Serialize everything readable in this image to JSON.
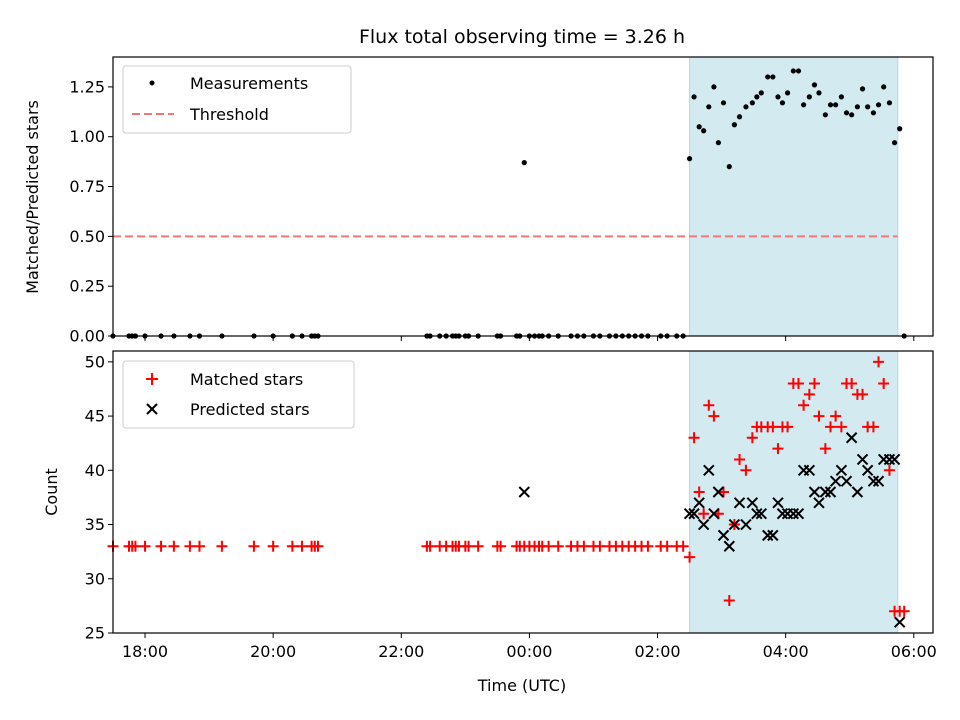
{
  "chart_data": [
    {
      "type": "scatter",
      "title": "Flux total observing time = 3.26 h",
      "ylabel": "Matched/Predicted stars",
      "xlabel": "",
      "xlim": [
        -6.5,
        6.3
      ],
      "ylim": [
        0,
        1.4
      ],
      "x_unit": "hours relative to 00:00 UTC",
      "yticks": [
        0,
        0.25,
        0.5,
        0.75,
        1.0,
        1.25
      ],
      "ytick_labels": [
        "0.00",
        "0.25",
        "0.50",
        "0.75",
        "1.00",
        "1.25"
      ],
      "highlight_span": [
        2.5,
        5.75
      ],
      "highlight_color": "#d3eaf1",
      "series": [
        {
          "name": "Measurements",
          "marker": "dot",
          "color": "#000000",
          "x": [
            -6.5,
            -6.25,
            -6.2,
            -6.15,
            -6.0,
            -5.75,
            -5.55,
            -5.3,
            -5.15,
            -4.8,
            -4.3,
            -4.0,
            -3.7,
            -3.55,
            -3.4,
            -3.35,
            -3.3,
            -1.6,
            -1.55,
            -1.4,
            -1.3,
            -1.2,
            -1.15,
            -1.1,
            -1.0,
            -0.95,
            -0.8,
            -0.5,
            -0.45,
            -0.2,
            -0.15,
            -0.08,
            0.0,
            0.08,
            0.15,
            0.2,
            0.3,
            0.45,
            0.65,
            0.75,
            0.85,
            1.0,
            1.1,
            1.25,
            1.35,
            1.45,
            1.55,
            1.65,
            1.75,
            1.85,
            2.05,
            2.15,
            2.3,
            2.4,
            2.5,
            2.57,
            2.65,
            2.72,
            2.8,
            2.88,
            2.95,
            3.03,
            3.12,
            3.2,
            3.28,
            3.38,
            3.48,
            3.55,
            3.62,
            3.72,
            3.8,
            3.88,
            3.95,
            4.03,
            4.12,
            4.2,
            4.28,
            4.37,
            4.45,
            4.52,
            4.62,
            4.7,
            4.78,
            4.87,
            4.95,
            5.03,
            5.12,
            5.2,
            5.28,
            5.37,
            5.45,
            5.53,
            5.62,
            5.7,
            5.78,
            5.85
          ],
          "y": [
            0,
            0,
            0,
            0,
            0,
            0,
            0,
            0,
            0,
            0,
            0,
            0,
            0,
            0,
            0,
            0,
            0,
            0,
            0,
            0,
            0,
            0,
            0,
            0,
            0,
            0,
            0,
            0,
            0,
            0,
            0,
            0.87,
            0,
            0,
            0,
            0,
            0,
            0,
            0,
            0,
            0,
            0,
            0,
            0,
            0,
            0,
            0,
            0,
            0,
            0,
            0,
            0,
            0,
            0,
            0.89,
            1.2,
            1.05,
            1.03,
            1.15,
            1.25,
            0.97,
            1.17,
            0.85,
            1.06,
            1.1,
            1.15,
            1.17,
            1.2,
            1.22,
            1.3,
            1.3,
            1.2,
            1.17,
            1.22,
            1.33,
            1.33,
            1.16,
            1.2,
            1.26,
            1.22,
            1.11,
            1.16,
            1.16,
            1.2,
            1.12,
            1.11,
            1.15,
            1.24,
            1.15,
            1.12,
            1.16,
            1.25,
            1.17,
            0.97,
            1.04,
            0
          ]
        },
        {
          "name": "Threshold",
          "marker": "dashed-line",
          "color": "#f07878",
          "x": [
            -6.5,
            5.75
          ],
          "y": [
            0.5,
            0.5
          ]
        }
      ],
      "legend": {
        "position": "top-left",
        "entries": [
          "Measurements",
          "Threshold"
        ]
      }
    },
    {
      "type": "scatter",
      "title": "",
      "ylabel": "Count",
      "xlabel": "Time (UTC)",
      "xlim": [
        -6.5,
        6.3
      ],
      "ylim": [
        25,
        51
      ],
      "x_unit": "hours relative to 00:00 UTC",
      "xticks": [
        -6,
        -4,
        -2,
        0,
        2,
        4,
        6
      ],
      "xtick_labels": [
        "18:00",
        "20:00",
        "22:00",
        "00:00",
        "02:00",
        "04:00",
        "06:00"
      ],
      "yticks": [
        25,
        30,
        35,
        40,
        45,
        50
      ],
      "ytick_labels": [
        "25",
        "30",
        "35",
        "40",
        "45",
        "50"
      ],
      "highlight_span": [
        2.5,
        5.75
      ],
      "highlight_color": "#d3eaf1",
      "series": [
        {
          "name": "Matched stars",
          "marker": "plus",
          "color": "#ff0000",
          "x": [
            -6.5,
            -6.25,
            -6.2,
            -6.15,
            -6.0,
            -5.75,
            -5.55,
            -5.3,
            -5.15,
            -4.8,
            -4.3,
            -4.0,
            -3.7,
            -3.55,
            -3.4,
            -3.35,
            -3.3,
            -1.6,
            -1.55,
            -1.4,
            -1.3,
            -1.2,
            -1.15,
            -1.1,
            -1.0,
            -0.95,
            -0.8,
            -0.5,
            -0.45,
            -0.2,
            -0.15,
            -0.08,
            0.0,
            0.08,
            0.15,
            0.2,
            0.3,
            0.45,
            0.65,
            0.75,
            0.85,
            1.0,
            1.1,
            1.25,
            1.35,
            1.45,
            1.55,
            1.65,
            1.75,
            1.85,
            2.05,
            2.15,
            2.3,
            2.4,
            2.5,
            2.57,
            2.65,
            2.72,
            2.8,
            2.88,
            2.95,
            3.03,
            3.12,
            3.2,
            3.28,
            3.38,
            3.48,
            3.55,
            3.62,
            3.72,
            3.8,
            3.88,
            3.95,
            4.03,
            4.12,
            4.2,
            4.28,
            4.37,
            4.45,
            4.52,
            4.62,
            4.7,
            4.78,
            4.87,
            4.95,
            5.03,
            5.12,
            5.2,
            5.28,
            5.37,
            5.45,
            5.53,
            5.62,
            5.7,
            5.78,
            5.85
          ],
          "y": [
            33,
            33,
            33,
            33,
            33,
            33,
            33,
            33,
            33,
            33,
            33,
            33,
            33,
            33,
            33,
            33,
            33,
            33,
            33,
            33,
            33,
            33,
            33,
            33,
            33,
            33,
            33,
            33,
            33,
            33,
            33,
            33,
            33,
            33,
            33,
            33,
            33,
            33,
            33,
            33,
            33,
            33,
            33,
            33,
            33,
            33,
            33,
            33,
            33,
            33,
            33,
            33,
            33,
            33,
            32,
            43,
            38,
            36,
            46,
            45,
            36,
            38,
            28,
            35,
            41,
            40,
            43,
            44,
            44,
            44,
            44,
            42,
            44,
            44,
            48,
            48,
            46,
            47,
            48,
            45,
            42,
            44,
            45,
            44,
            48,
            48,
            47,
            47,
            44,
            44,
            50,
            48,
            40,
            27,
            27,
            27
          ]
        },
        {
          "name": "Predicted stars",
          "marker": "x",
          "color": "#000000",
          "x": [
            -0.08,
            2.5,
            2.57,
            2.65,
            2.72,
            2.8,
            2.88,
            2.95,
            3.03,
            3.12,
            3.2,
            3.28,
            3.38,
            3.48,
            3.55,
            3.62,
            3.72,
            3.8,
            3.88,
            3.95,
            4.03,
            4.12,
            4.2,
            4.28,
            4.37,
            4.45,
            4.52,
            4.62,
            4.7,
            4.78,
            4.87,
            4.95,
            5.03,
            5.12,
            5.2,
            5.28,
            5.37,
            5.45,
            5.53,
            5.62,
            5.7,
            5.78
          ],
          "y": [
            38,
            36,
            36,
            37,
            35,
            40,
            36,
            38,
            34,
            33,
            35,
            37,
            35,
            37,
            36,
            36,
            34,
            34,
            37,
            36,
            36,
            36,
            36,
            40,
            40,
            38,
            37,
            38,
            38,
            39,
            40,
            39,
            43,
            38,
            41,
            40,
            39,
            39,
            41,
            41,
            41,
            26
          ]
        }
      ],
      "legend": {
        "position": "top-left",
        "entries": [
          "Matched stars",
          "Predicted stars"
        ]
      }
    }
  ]
}
